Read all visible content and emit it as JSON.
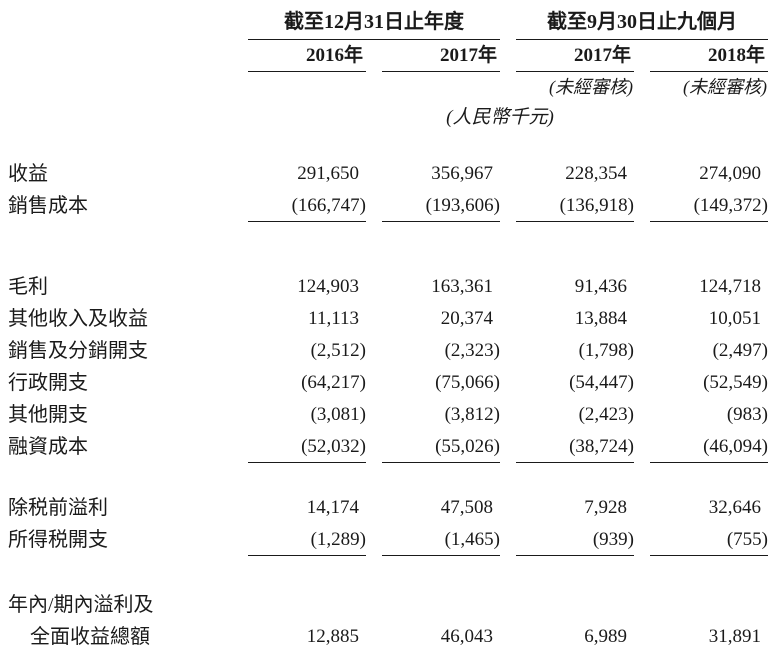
{
  "header": {
    "group1": "截至12月31日止年度",
    "group2": "截至9月30日止九個月",
    "years": [
      "2016年",
      "2017年",
      "2017年",
      "2018年"
    ],
    "unaudited": "(未經審核)",
    "unit": "(人民幣千元)"
  },
  "rows": [
    {
      "label": "收益",
      "values": [
        "291,650",
        "356,967",
        "228,354",
        "274,090"
      ]
    },
    {
      "label": "銷售成本",
      "values": [
        "(166,747)",
        "(193,606)",
        "(136,918)",
        "(149,372)"
      ]
    },
    {
      "label": "毛利",
      "values": [
        "124,903",
        "163,361",
        "91,436",
        "124,718"
      ]
    },
    {
      "label": "其他收入及收益",
      "values": [
        "11,113",
        "20,374",
        "13,884",
        "10,051"
      ]
    },
    {
      "label": "銷售及分銷開支",
      "values": [
        "(2,512)",
        "(2,323)",
        "(1,798)",
        "(2,497)"
      ]
    },
    {
      "label": "行政開支",
      "values": [
        "(64,217)",
        "(75,066)",
        "(54,447)",
        "(52,549)"
      ]
    },
    {
      "label": "其他開支",
      "values": [
        "(3,081)",
        "(3,812)",
        "(2,423)",
        "(983)"
      ]
    },
    {
      "label": "融資成本",
      "values": [
        "(52,032)",
        "(55,026)",
        "(38,724)",
        "(46,094)"
      ]
    },
    {
      "label": "除税前溢利",
      "values": [
        "14,174",
        "47,508",
        "7,928",
        "32,646"
      ]
    },
    {
      "label": "所得税開支",
      "values": [
        "(1,289)",
        "(1,465)",
        "(939)",
        "(755)"
      ]
    },
    {
      "label_line1": "年內/期內溢利及",
      "label_line2": "全面收益總額",
      "values": [
        "12,885",
        "46,043",
        "6,989",
        "31,891"
      ]
    }
  ]
}
